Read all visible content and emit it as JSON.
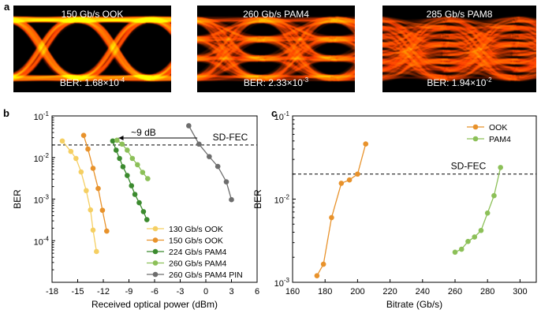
{
  "panel_labels": {
    "a": "a",
    "b": "b",
    "c": "c"
  },
  "eye_diagrams": [
    {
      "title": "150 Gb/s OOK",
      "ber_prefix": "BER: ",
      "ber_mantissa": "1.68×10",
      "ber_exp": "-4",
      "levels": 2
    },
    {
      "title": "260 Gb/s PAM4",
      "ber_prefix": "BER: ",
      "ber_mantissa": "2.33×10",
      "ber_exp": "-3",
      "levels": 4
    },
    {
      "title": "285 Gb/s PAM8",
      "ber_prefix": "BER: ",
      "ber_mantissa": "1.94×10",
      "ber_exp": "-2",
      "levels": 8
    }
  ],
  "chart_data": [
    {
      "type": "line",
      "title": "",
      "xlabel": "Received optical power (dBm)",
      "ylabel": "BER",
      "xlim": [
        -18,
        6
      ],
      "ylim_log10": [
        -5,
        -1
      ],
      "log_y": true,
      "xticks": [
        -18,
        -15,
        -12,
        -9,
        -6,
        -3,
        0,
        3,
        6
      ],
      "yticks_exp": [
        -1,
        -2,
        -3,
        -4
      ],
      "threshold": {
        "label": "SD-FEC",
        "value": 0.02
      },
      "annotation": {
        "label": "~9 dB"
      },
      "legend_position": "bottom-right",
      "series": [
        {
          "name": "130 Gb/s OOK",
          "color": "#f5cf62",
          "x": [
            -16.8,
            -15.8,
            -15.2,
            -14.6,
            -14.0,
            -13.5,
            -13.2,
            -12.8
          ],
          "y": [
            0.025,
            0.014,
            0.0095,
            0.0045,
            0.0016,
            0.00055,
            0.00018,
            5.5e-05
          ]
        },
        {
          "name": "150 Gb/s OOK",
          "color": "#e8922b",
          "x": [
            -14.3,
            -13.8,
            -13.2,
            -12.6,
            -12.1,
            -11.6
          ],
          "y": [
            0.034,
            0.016,
            0.0055,
            0.0018,
            0.00054,
            0.00017
          ]
        },
        {
          "name": "224 Gb/s PAM4",
          "color": "#3b8a2e",
          "x": [
            -10.9,
            -10.5,
            -10.1,
            -9.7,
            -9.2,
            -8.7,
            -8.3,
            -7.8,
            -7.3,
            -6.9
          ],
          "y": [
            0.025,
            0.015,
            0.0095,
            0.006,
            0.0037,
            0.0021,
            0.0013,
            0.00082,
            0.0005,
            0.00032
          ]
        },
        {
          "name": "260 Gb/s PAM4",
          "color": "#8cc058",
          "x": [
            -10.4,
            -9.8,
            -9.2,
            -8.6,
            -8.0,
            -7.4,
            -6.8
          ],
          "y": [
            0.026,
            0.021,
            0.015,
            0.0095,
            0.0067,
            0.0044,
            0.0031
          ]
        },
        {
          "name": "260 Gb/s PAM4 PIN",
          "color": "#6d6d6d",
          "x": [
            -2.0,
            -0.8,
            0.4,
            1.4,
            2.4,
            3.0
          ],
          "y": [
            0.058,
            0.021,
            0.0105,
            0.0061,
            0.0026,
            0.00097
          ]
        }
      ]
    },
    {
      "type": "line",
      "title": "",
      "xlabel": "Bitrate (Gb/s)",
      "ylabel": "BER",
      "xlim": [
        160,
        310
      ],
      "ylim_log10": [
        -3,
        -1
      ],
      "log_y": true,
      "xticks": [
        160,
        180,
        200,
        220,
        240,
        260,
        280,
        300
      ],
      "yticks_exp": [
        -1,
        -2,
        -3
      ],
      "threshold": {
        "label": "SD-FEC",
        "value": 0.02
      },
      "legend_position": "top-right",
      "series": [
        {
          "name": "OOK",
          "color": "#e8922b",
          "x": [
            175,
            179,
            184,
            190,
            195,
            200,
            205
          ],
          "y": [
            0.0012,
            0.00165,
            0.006,
            0.0155,
            0.017,
            0.02,
            0.046
          ]
        },
        {
          "name": "PAM4",
          "color": "#8cc058",
          "x": [
            260,
            264,
            268,
            272,
            276,
            280,
            284,
            288
          ],
          "y": [
            0.0023,
            0.0025,
            0.0031,
            0.0035,
            0.0042,
            0.0068,
            0.011,
            0.024
          ]
        }
      ]
    }
  ]
}
